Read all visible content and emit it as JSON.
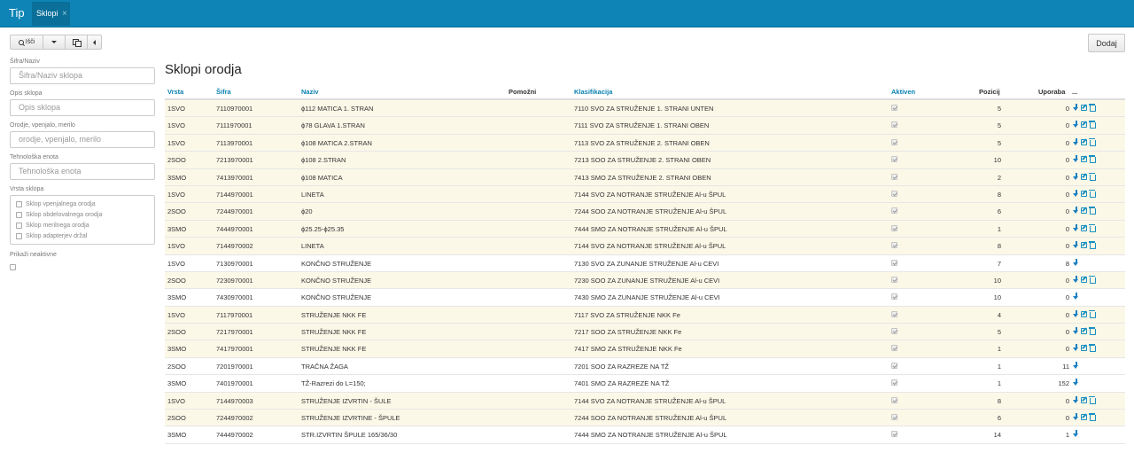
{
  "topbar": {
    "brand": "Tip",
    "tab_label": "Sklopi",
    "tab_close": "×"
  },
  "toolbar": {
    "search_label": "Išči",
    "add_label": "Dodaj"
  },
  "filters": {
    "sifra_label": "Šifra/Naziv",
    "sifra_placeholder": "Šifra/Naziv sklopa",
    "opis_label": "Opis sklopa",
    "opis_placeholder": "Opis sklopa",
    "orodje_label": "Orodje, vpenjalo, merilo",
    "orodje_placeholder": "orodje, vpenjalo, merilo",
    "enota_label": "Tehnološka enota",
    "enota_placeholder": "Tehnološka enota",
    "vrsta_label": "Vrsta sklopa",
    "vrsta_options": [
      "Sklop vpenjalnega orodja",
      "Sklop obdelovalnega orodja",
      "Sklop merilnega orodja",
      "Sklop adapterjev držal"
    ],
    "inactive_label": "Prikaži neaktivne"
  },
  "page": {
    "title": "Sklopi orodja"
  },
  "table": {
    "headers": {
      "vrsta": "Vrsta",
      "sifra": "Šifra",
      "naziv": "Naziv",
      "pomozni": "Pomožni",
      "klasifikacija": "Klasifikacija",
      "aktiven": "Aktiven",
      "pozicij": "Pozicij",
      "uporaba": "Uporaba",
      "more": "..."
    },
    "rows": [
      {
        "vrsta": "1SVO",
        "sifra": "7110970001",
        "naziv": "ϕ112 MATICA 1. STRAN",
        "klasifikacija": "7110 SVO ZA STRUŽENJE 1. STRANI UNTEN",
        "pozicij": "5",
        "uporaba": "0",
        "highlight": true,
        "editable": true
      },
      {
        "vrsta": "1SVO",
        "sifra": "7111970001",
        "naziv": "ϕ78 GLAVA 1.STRAN",
        "klasifikacija": "7111 SVO ZA STRUŽENJE 1. STRANI OBEN",
        "pozicij": "5",
        "uporaba": "0",
        "highlight": true,
        "editable": true
      },
      {
        "vrsta": "1SVO",
        "sifra": "7113970001",
        "naziv": "ϕ108 MATICA 2.STRAN",
        "klasifikacija": "7113 SVO ZA STRUŽENJE 2. STRANI OBEN",
        "pozicij": "5",
        "uporaba": "0",
        "highlight": true,
        "editable": true
      },
      {
        "vrsta": "2SOO",
        "sifra": "7213970001",
        "naziv": "ϕ108 2.STRAN",
        "klasifikacija": "7213 SOO ZA STRUŽENJE 2. STRANI OBEN",
        "pozicij": "10",
        "uporaba": "0",
        "highlight": true,
        "editable": true
      },
      {
        "vrsta": "3SMO",
        "sifra": "7413970001",
        "naziv": "ϕ108 MATICA",
        "klasifikacija": "7413 SMO ZA STRUŽENJE 2. STRANI OBEN",
        "pozicij": "2",
        "uporaba": "0",
        "highlight": true,
        "editable": true
      },
      {
        "vrsta": "1SVO",
        "sifra": "7144970001",
        "naziv": "LINETA",
        "klasifikacija": "7144 SVO ZA NOTRANJE STRUŽENJE Al-u ŠPUL",
        "pozicij": "8",
        "uporaba": "0",
        "highlight": true,
        "editable": true
      },
      {
        "vrsta": "2SOO",
        "sifra": "7244970001",
        "naziv": "ϕ20",
        "klasifikacija": "7244 SOO ZA NOTRANJE STRUŽENJE Al-u ŠPUL",
        "pozicij": "6",
        "uporaba": "0",
        "highlight": true,
        "editable": true
      },
      {
        "vrsta": "3SMO",
        "sifra": "7444970001",
        "naziv": "ϕ25.25-ϕ25.35",
        "klasifikacija": "7444 SMO ZA NOTRANJE STRUŽENJE Al-u ŠPUL",
        "pozicij": "1",
        "uporaba": "0",
        "highlight": true,
        "editable": true
      },
      {
        "vrsta": "1SVO",
        "sifra": "7144970002",
        "naziv": "LINETA",
        "klasifikacija": "7144 SVO ZA NOTRANJE STRUŽENJE Al-u ŠPUL",
        "pozicij": "8",
        "uporaba": "0",
        "highlight": true,
        "editable": true
      },
      {
        "vrsta": "1SVO",
        "sifra": "7130970001",
        "naziv": "KONČNO STRUŽENJE",
        "klasifikacija": "7130 SVO ZA ZUNANJE STRUŽENJE Al-u CEVI",
        "pozicij": "7",
        "uporaba": "8",
        "highlight": false,
        "editable": false
      },
      {
        "vrsta": "2SOO",
        "sifra": "7230970001",
        "naziv": "KONČNO STRUŽENJE",
        "klasifikacija": "7230 SOO ZA ZUNANJE STRUŽENJE Al-u CEVI",
        "pozicij": "10",
        "uporaba": "0",
        "highlight": true,
        "editable": true
      },
      {
        "vrsta": "3SMO",
        "sifra": "7430970001",
        "naziv": "KONČNO STRUŽENJE",
        "klasifikacija": "7430 SMO ZA ZUNANJE STRUŽENJE Al-u CEVI",
        "pozicij": "10",
        "uporaba": "0",
        "highlight": false,
        "editable": false
      },
      {
        "vrsta": "1SVO",
        "sifra": "7117970001",
        "naziv": "STRUŽENJE NKK FE",
        "klasifikacija": "7117 SVO ZA STRUŽENJE NKK Fe",
        "pozicij": "4",
        "uporaba": "0",
        "highlight": true,
        "editable": true
      },
      {
        "vrsta": "2SOO",
        "sifra": "7217970001",
        "naziv": "STRUŽENJE NKK FE",
        "klasifikacija": "7217 SOO ZA STRUŽENJE NKK Fe",
        "pozicij": "5",
        "uporaba": "0",
        "highlight": true,
        "editable": true
      },
      {
        "vrsta": "3SMO",
        "sifra": "7417970001",
        "naziv": "STRUŽENJE NKK FE",
        "klasifikacija": "7417 SMO ZA STRUŽENJE NKK Fe",
        "pozicij": "1",
        "uporaba": "0",
        "highlight": true,
        "editable": true
      },
      {
        "vrsta": "2SOO",
        "sifra": "7201970001",
        "naziv": "TRAČNA ŽAGA",
        "klasifikacija": "7201 SOO ZA RAZREZE NA TŽ",
        "pozicij": "1",
        "uporaba": "11",
        "highlight": false,
        "editable": false
      },
      {
        "vrsta": "3SMO",
        "sifra": "7401970001",
        "naziv": "TŽ-Razrezi do L=150;",
        "klasifikacija": "7401 SMO ZA RAZREZE NA TŽ",
        "pozicij": "1",
        "uporaba": "152",
        "highlight": false,
        "editable": false
      },
      {
        "vrsta": "1SVO",
        "sifra": "7144970003",
        "naziv": "STRUŽENJE IZVRTIN - ŠULE",
        "klasifikacija": "7144 SVO ZA NOTRANJE STRUŽENJE Al-u ŠPUL",
        "pozicij": "8",
        "uporaba": "0",
        "highlight": true,
        "editable": true
      },
      {
        "vrsta": "2SOO",
        "sifra": "7244970002",
        "naziv": "STRUŽENJE IZVRTINE - ŠPULE",
        "klasifikacija": "7244 SOO ZA NOTRANJE STRUŽENJE Al-u ŠPUL",
        "pozicij": "6",
        "uporaba": "0",
        "highlight": true,
        "editable": true
      },
      {
        "vrsta": "3SMO",
        "sifra": "7444970002",
        "naziv": "STR.IZVRTIN ŠPULE 165/36/30",
        "klasifikacija": "7444 SMO ZA NOTRANJE STRUŽENJE Al-u ŠPUL",
        "pozicij": "14",
        "uporaba": "1",
        "highlight": false,
        "editable": false
      }
    ]
  }
}
